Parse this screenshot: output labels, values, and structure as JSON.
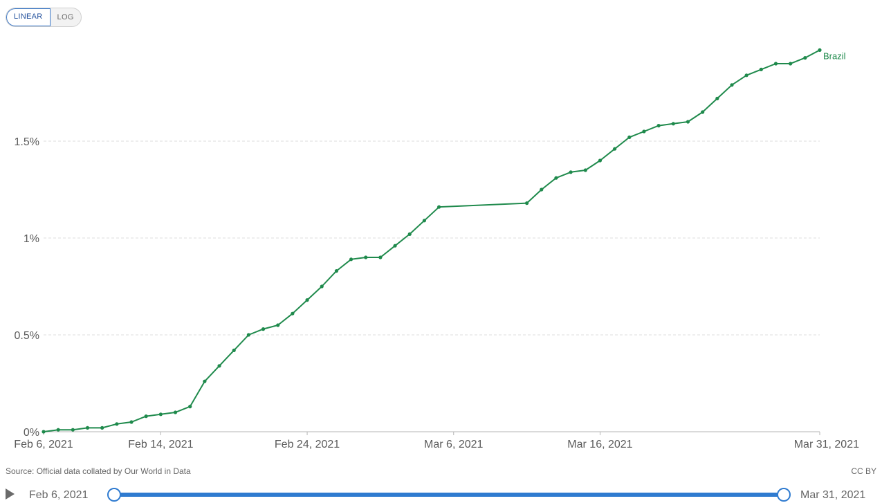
{
  "scale_toggle": {
    "linear_label": "LINEAR",
    "log_label": "LOG",
    "selected": "LINEAR"
  },
  "chart_data": {
    "type": "line",
    "x": [
      "2021-02-06",
      "2021-02-07",
      "2021-02-08",
      "2021-02-09",
      "2021-02-10",
      "2021-02-11",
      "2021-02-12",
      "2021-02-13",
      "2021-02-14",
      "2021-02-15",
      "2021-02-16",
      "2021-02-17",
      "2021-02-18",
      "2021-02-19",
      "2021-02-20",
      "2021-02-21",
      "2021-02-22",
      "2021-02-23",
      "2021-02-24",
      "2021-02-25",
      "2021-02-26",
      "2021-02-27",
      "2021-02-28",
      "2021-03-01",
      "2021-03-02",
      "2021-03-03",
      "2021-03-04",
      "2021-03-05",
      "2021-03-11",
      "2021-03-12",
      "2021-03-13",
      "2021-03-14",
      "2021-03-15",
      "2021-03-16",
      "2021-03-17",
      "2021-03-18",
      "2021-03-19",
      "2021-03-20",
      "2021-03-21",
      "2021-03-22",
      "2021-03-23",
      "2021-03-24",
      "2021-03-25",
      "2021-03-26",
      "2021-03-27",
      "2021-03-28",
      "2021-03-29",
      "2021-03-30",
      "2021-03-31"
    ],
    "series": [
      {
        "name": "Brazil",
        "color": "#1f8a4c",
        "values": [
          0.0,
          0.01,
          0.01,
          0.02,
          0.02,
          0.04,
          0.05,
          0.08,
          0.09,
          0.1,
          0.13,
          0.26,
          0.34,
          0.42,
          0.5,
          0.53,
          0.55,
          0.61,
          0.68,
          0.75,
          0.83,
          0.89,
          0.9,
          0.9,
          0.96,
          1.02,
          1.09,
          1.16,
          1.18,
          1.25,
          1.31,
          1.34,
          1.35,
          1.4,
          1.46,
          1.52,
          1.55,
          1.58,
          1.59,
          1.6,
          1.65,
          1.72,
          1.79,
          1.84,
          1.87,
          1.9,
          1.9,
          1.93,
          1.97
        ]
      }
    ],
    "y_ticks": [
      {
        "value": 0,
        "label": "0%"
      },
      {
        "value": 0.5,
        "label": "0.5%"
      },
      {
        "value": 1,
        "label": "1%"
      },
      {
        "value": 1.5,
        "label": "1.5%"
      }
    ],
    "x_ticks": [
      {
        "date": "2021-02-06",
        "label": "Feb 6, 2021"
      },
      {
        "date": "2021-02-14",
        "label": "Feb 14, 2021"
      },
      {
        "date": "2021-02-24",
        "label": "Feb 24, 2021"
      },
      {
        "date": "2021-03-06",
        "label": "Mar 6, 2021"
      },
      {
        "date": "2021-03-16",
        "label": "Mar 16, 2021"
      },
      {
        "date": "2021-03-31",
        "label": "Mar 31, 2021"
      }
    ],
    "xlim": [
      "2021-02-06",
      "2021-03-31"
    ],
    "ylim": [
      0,
      2
    ],
    "grid": "horizontal dashed",
    "axis_color": "#b5b5b5",
    "grid_color": "#dddddd"
  },
  "footer": {
    "source": "Source: Official data collated by Our World in Data",
    "license": "CC BY"
  },
  "timeline": {
    "start_label": "Feb 6, 2021",
    "end_label": "Mar 31, 2021",
    "accent": "#2f7bd0"
  }
}
